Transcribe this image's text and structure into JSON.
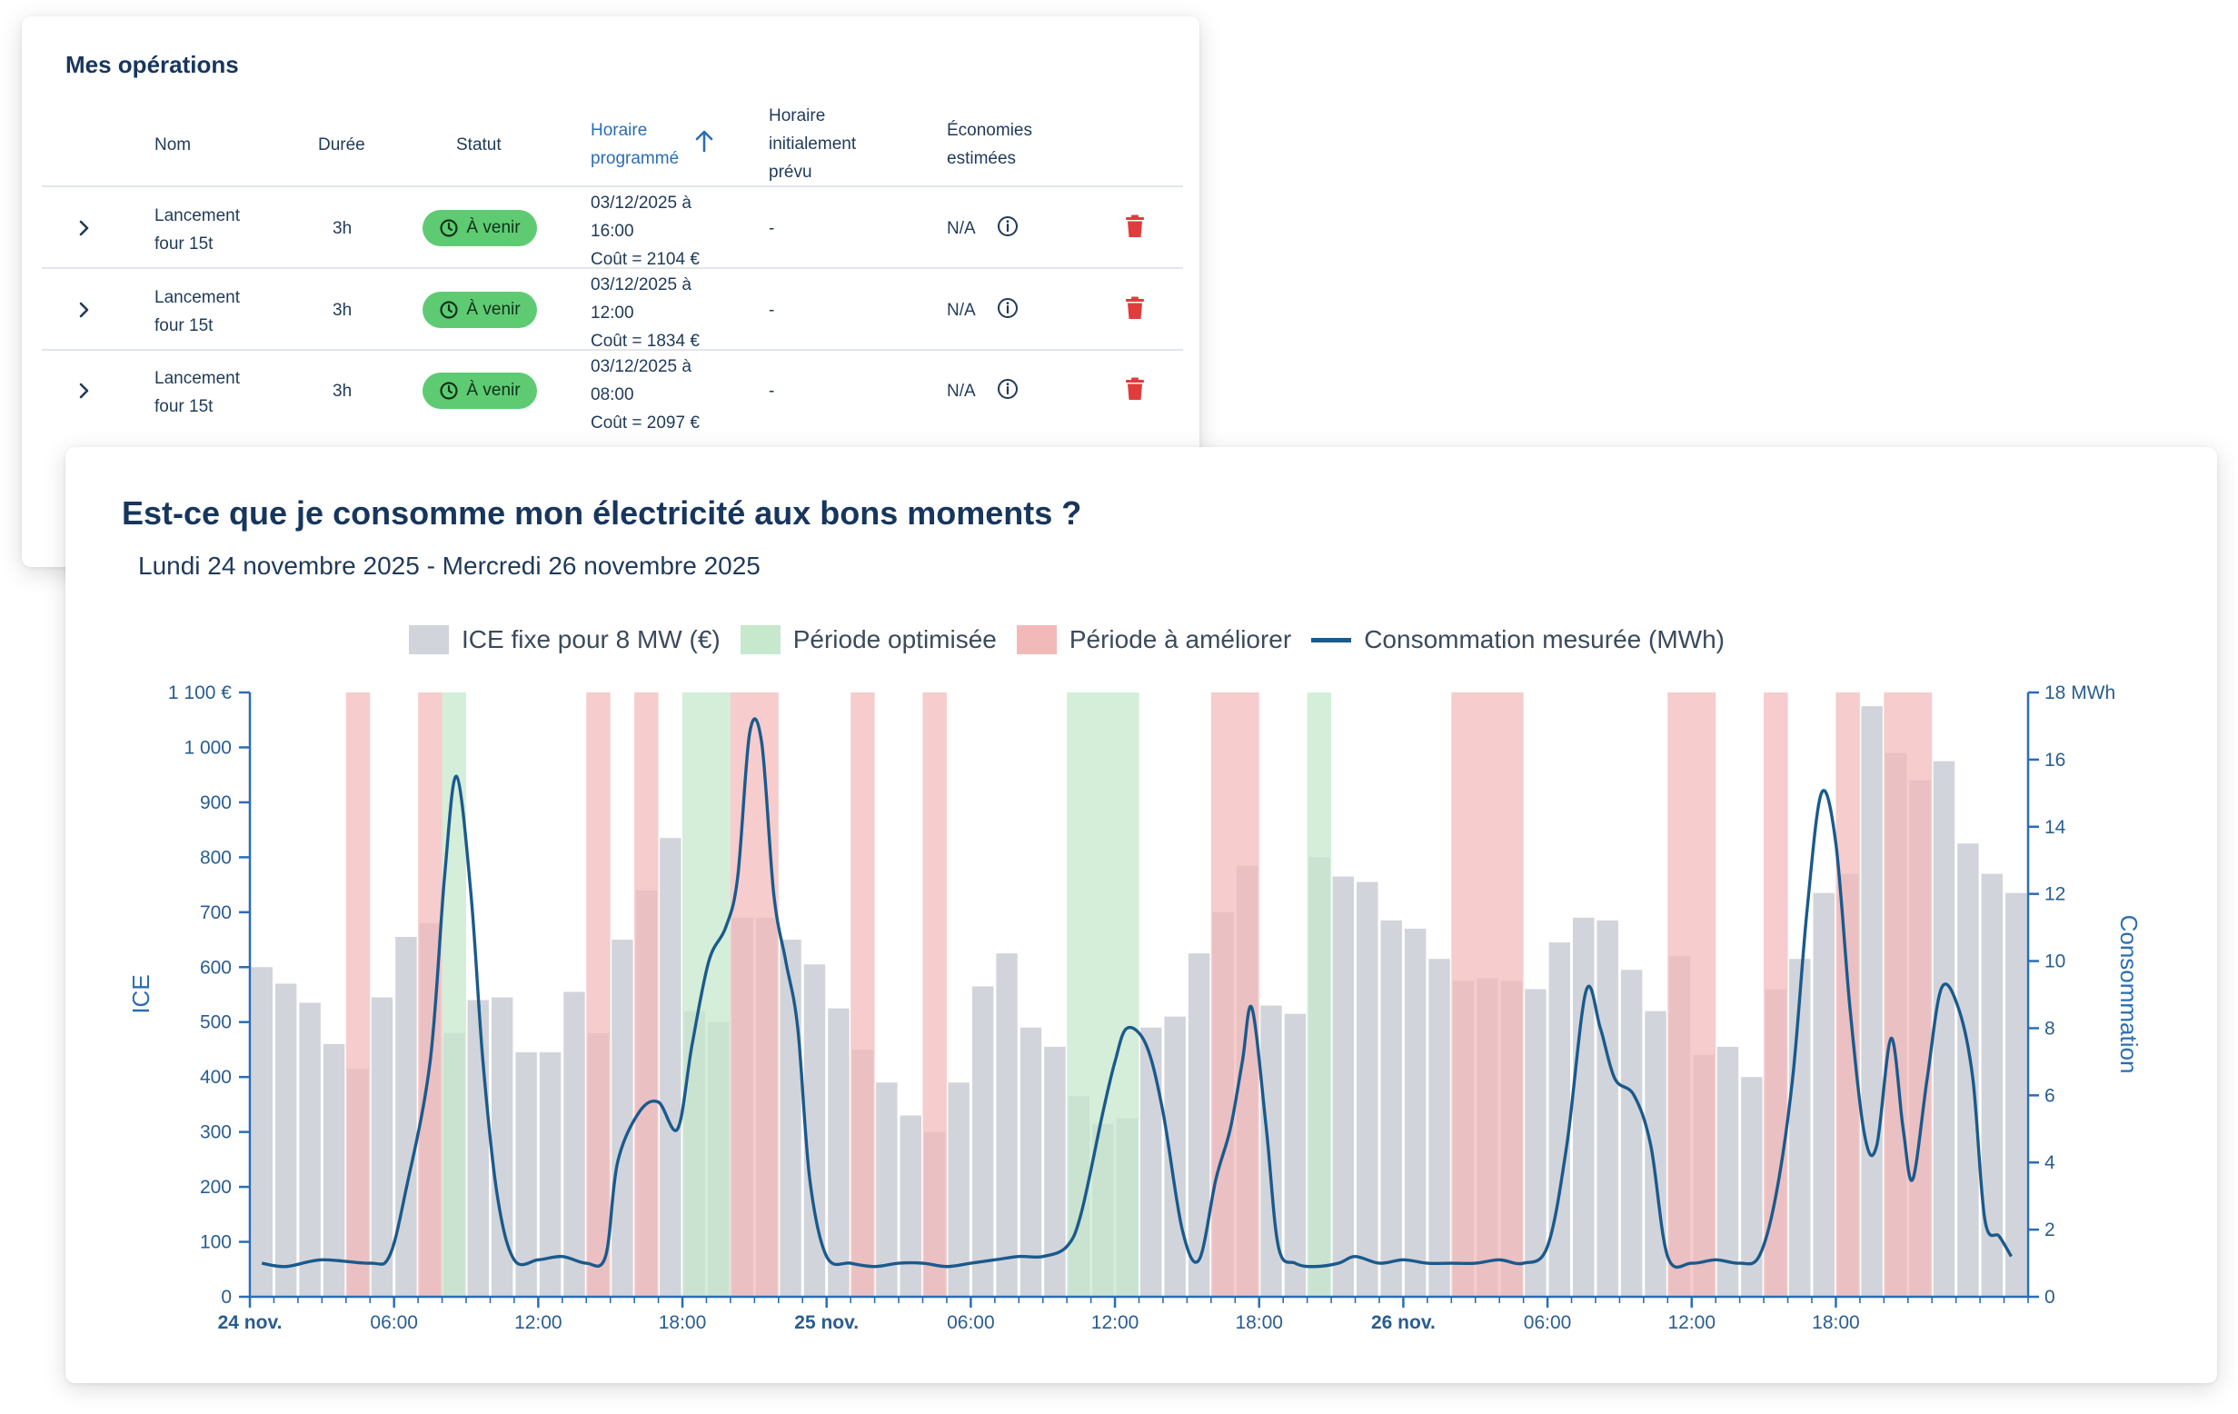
{
  "operations": {
    "title": "Mes opérations",
    "headers": {
      "name": "Nom",
      "duration": "Durée",
      "status": "Statut",
      "scheduled": [
        "Horaire",
        "programmé"
      ],
      "initial": [
        "Horaire",
        "initialement",
        "prévu"
      ],
      "savings": [
        "Économies",
        "estimées"
      ]
    },
    "rows": [
      {
        "name": [
          "Lancement",
          "four 15t"
        ],
        "duration": "3h",
        "status": "À venir",
        "schedule": [
          "03/12/2025 à",
          "16:00"
        ],
        "cost": "Coût = 2104 €",
        "initial": "-",
        "savings": "N/A"
      },
      {
        "name": [
          "Lancement",
          "four 15t"
        ],
        "duration": "3h",
        "status": "À venir",
        "schedule": [
          "03/12/2025 à",
          "12:00"
        ],
        "cost": "Coût = 1834 €",
        "initial": "-",
        "savings": "N/A"
      },
      {
        "name": [
          "Lancement",
          "four 15t"
        ],
        "duration": "3h",
        "status": "À venir",
        "schedule": [
          "03/12/2025 à",
          "08:00"
        ],
        "cost": "Coût = 2097 €",
        "initial": "-",
        "savings": "N/A"
      }
    ],
    "colors": {
      "badge": "#5ecb73",
      "delete": "#e03c3c",
      "sorted_header": "#2a6db5"
    }
  },
  "chart": {
    "title": "Est-ce que je consomme mon électricité aux bons moments ?",
    "subtitle": "Lundi 24 novembre 2025 - Mercredi 26 novembre 2025",
    "legend": [
      "ICE fixe pour 8 MW (€)",
      "Période optimisée",
      "Période à améliorer",
      "Consommation mesurée (MWh)"
    ]
  },
  "chart_data": {
    "type": "bar",
    "left_axis": {
      "label": "ICE",
      "range": [
        0,
        1100
      ],
      "ticks": [
        "0",
        "100",
        "200",
        "300",
        "400",
        "500",
        "600",
        "700",
        "800",
        "900",
        "1 000",
        "1 100 €"
      ]
    },
    "right_axis": {
      "label": "Consommation",
      "range": [
        0,
        18
      ],
      "ticks": [
        "0",
        "2",
        "4",
        "6",
        "8",
        "10",
        "12",
        "14",
        "16",
        "18 MWh"
      ]
    },
    "x_ticks": [
      "24 nov.",
      "06:00",
      "12:00",
      "18:00",
      "25 nov.",
      "06:00",
      "12:00",
      "18:00",
      "26 nov.",
      "06:00",
      "12:00",
      "18:00"
    ],
    "x_hours": [
      0,
      6,
      12,
      18,
      24,
      30,
      36,
      42,
      48,
      54,
      60,
      66
    ],
    "bar_unit": "hour",
    "ice_bars": [
      600,
      570,
      535,
      460,
      415,
      545,
      655,
      680,
      480,
      540,
      545,
      445,
      445,
      555,
      480,
      650,
      740,
      835,
      520,
      500,
      690,
      690,
      650,
      605,
      525,
      450,
      390,
      330,
      300,
      390,
      565,
      625,
      490,
      455,
      365,
      315,
      325,
      490,
      510,
      625,
      700,
      785,
      530,
      515,
      800,
      765,
      755,
      685,
      670,
      615,
      575,
      580,
      575,
      560,
      645,
      690,
      685,
      595,
      520,
      620,
      440,
      455,
      400,
      560,
      615,
      735,
      770,
      1075,
      990,
      940,
      975,
      825,
      770,
      735
    ],
    "optimized_periods": [
      [
        8,
        9
      ],
      [
        18,
        20
      ],
      [
        34,
        37
      ],
      [
        44,
        45
      ]
    ],
    "improve_periods": [
      [
        4,
        5
      ],
      [
        7,
        8
      ],
      [
        14,
        15
      ],
      [
        16,
        17
      ],
      [
        20,
        22
      ],
      [
        25,
        26
      ],
      [
        28,
        29
      ],
      [
        40,
        42
      ],
      [
        50,
        53
      ],
      [
        59,
        61
      ],
      [
        63,
        64
      ],
      [
        66,
        67
      ],
      [
        68,
        70
      ]
    ],
    "consumption": [
      [
        0.5,
        1.0
      ],
      [
        1.5,
        0.9
      ],
      [
        3,
        1.1
      ],
      [
        5,
        1.0
      ],
      [
        5.8,
        1.2
      ],
      [
        6.5,
        3.2
      ],
      [
        7.5,
        7.0
      ],
      [
        8.1,
        12.5
      ],
      [
        8.6,
        15.5
      ],
      [
        9.2,
        12.0
      ],
      [
        9.7,
        7.0
      ],
      [
        10.3,
        3.0
      ],
      [
        11,
        1.1
      ],
      [
        12,
        1.1
      ],
      [
        13,
        1.2
      ],
      [
        14,
        1.0
      ],
      [
        14.8,
        1.2
      ],
      [
        15.3,
        4.0
      ],
      [
        16.2,
        5.5
      ],
      [
        17,
        5.8
      ],
      [
        17.8,
        5.0
      ],
      [
        18.4,
        7.5
      ],
      [
        19.1,
        10.0
      ],
      [
        19.8,
        11.0
      ],
      [
        20.3,
        12.5
      ],
      [
        20.8,
        16.8
      ],
      [
        21.3,
        16.5
      ],
      [
        21.8,
        12.0
      ],
      [
        22.3,
        10.0
      ],
      [
        22.8,
        8.0
      ],
      [
        23.3,
        3.5
      ],
      [
        24,
        1.2
      ],
      [
        25,
        1.0
      ],
      [
        26,
        0.9
      ],
      [
        27,
        1.0
      ],
      [
        28,
        1.0
      ],
      [
        29,
        0.9
      ],
      [
        30,
        1.0
      ],
      [
        31,
        1.1
      ],
      [
        32,
        1.2
      ],
      [
        33,
        1.2
      ],
      [
        34,
        1.5
      ],
      [
        34.6,
        2.5
      ],
      [
        35.5,
        5.5
      ],
      [
        36,
        7.0
      ],
      [
        36.5,
        8.0
      ],
      [
        37.3,
        7.5
      ],
      [
        38,
        5.5
      ],
      [
        38.8,
        2.0
      ],
      [
        39.5,
        1.1
      ],
      [
        40.2,
        3.5
      ],
      [
        40.8,
        5.0
      ],
      [
        41.3,
        7.0
      ],
      [
        41.7,
        8.6
      ],
      [
        42.3,
        5.0
      ],
      [
        42.8,
        1.5
      ],
      [
        43.5,
        1.0
      ],
      [
        44.3,
        0.9
      ],
      [
        45.3,
        1.0
      ],
      [
        46,
        1.2
      ],
      [
        47,
        1.0
      ],
      [
        48,
        1.1
      ],
      [
        49,
        1.0
      ],
      [
        50,
        1.0
      ],
      [
        51,
        1.0
      ],
      [
        52,
        1.1
      ],
      [
        53,
        1.0
      ],
      [
        54,
        1.5
      ],
      [
        54.8,
        4.5
      ],
      [
        55.6,
        9.1
      ],
      [
        56.2,
        8.0
      ],
      [
        56.8,
        6.5
      ],
      [
        57.6,
        6.0
      ],
      [
        58.3,
        4.5
      ],
      [
        59,
        1.2
      ],
      [
        60,
        1.0
      ],
      [
        61,
        1.1
      ],
      [
        62,
        1.0
      ],
      [
        62.8,
        1.2
      ],
      [
        63.5,
        3.0
      ],
      [
        64.2,
        6.5
      ],
      [
        64.8,
        11.5
      ],
      [
        65.4,
        15.0
      ],
      [
        66,
        13.5
      ],
      [
        66.6,
        8.5
      ],
      [
        67.2,
        4.8
      ],
      [
        67.7,
        4.5
      ],
      [
        68.3,
        7.7
      ],
      [
        68.8,
        5.0
      ],
      [
        69.2,
        3.5
      ],
      [
        69.8,
        6.5
      ],
      [
        70.4,
        9.2
      ],
      [
        71.1,
        8.6
      ],
      [
        71.7,
        6.5
      ],
      [
        72.2,
        2.3
      ],
      [
        72.8,
        1.8
      ],
      [
        73.3,
        1.2
      ]
    ],
    "colors": {
      "bar": "#d2d4db",
      "optimized": "#c6e8cc",
      "improve": "#f2b9b9",
      "line": "#1a5a8c",
      "axis": "#2a6db5"
    },
    "grid": false,
    "legend_position": "top-center"
  }
}
